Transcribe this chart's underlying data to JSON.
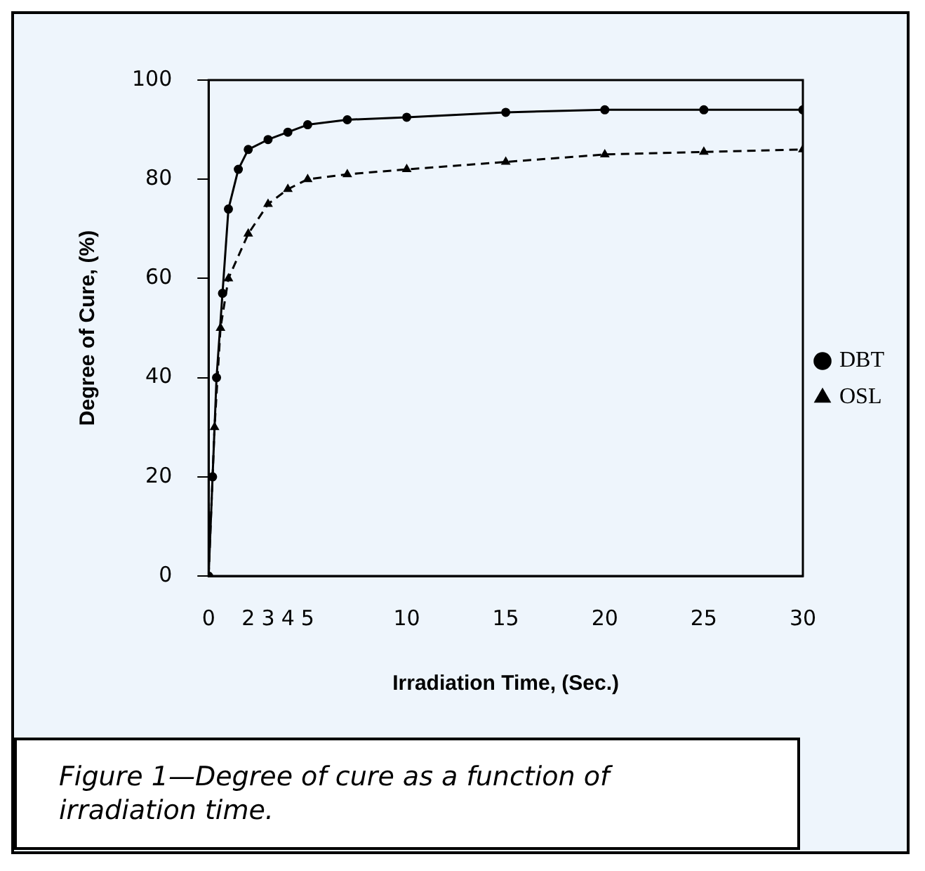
{
  "chart_data": {
    "type": "line",
    "xlabel": "Irradiation Time, (Sec.)",
    "ylabel": "Degree of Cure, (%)",
    "xlim": [
      0,
      30
    ],
    "xticks": [
      0,
      2,
      3,
      4,
      5,
      10,
      15,
      20,
      25,
      30
    ],
    "ylim": [
      0,
      100
    ],
    "yticks": [
      0,
      20,
      40,
      60,
      80,
      100
    ],
    "grid": false,
    "legend": "right",
    "series": [
      {
        "name": "DBT",
        "color": "#000000",
        "line_style": "solid",
        "marker": "circle",
        "x": [
          0,
          0.2,
          0.4,
          0.7,
          1,
          1.5,
          2,
          3,
          4,
          5,
          7,
          10,
          15,
          20,
          25,
          30
        ],
        "values": [
          0,
          20,
          40,
          57,
          74,
          82,
          86,
          88,
          89.5,
          91,
          92,
          92.5,
          93.5,
          94,
          94,
          94
        ]
      },
      {
        "name": "OSL",
        "color": "#000000",
        "line_style": "dashed",
        "marker": "triangle",
        "x": [
          0,
          0.3,
          0.6,
          1,
          2,
          3,
          4,
          5,
          7,
          10,
          15,
          20,
          25,
          30
        ],
        "values": [
          0,
          30,
          50,
          60,
          69,
          75,
          78,
          80,
          81,
          82,
          83.5,
          85,
          85.5,
          86
        ]
      }
    ],
    "annotations": [
      "Figure 1—Degree of cure as a function of irradiation time."
    ]
  }
}
